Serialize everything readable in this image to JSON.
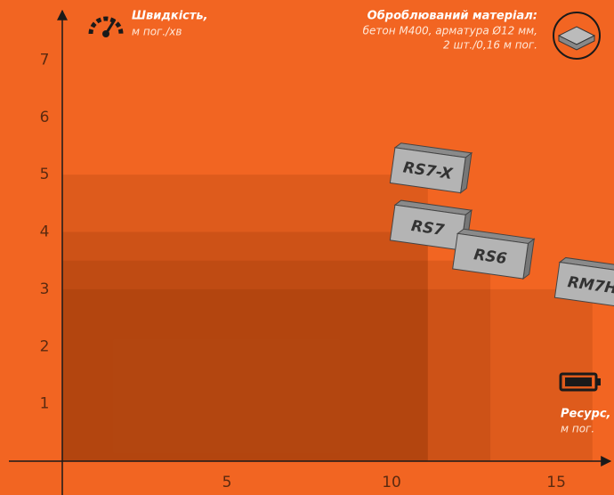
{
  "chart_data": {
    "type": "step-area",
    "y_label": "Швидкість,",
    "y_unit": "м пог./хв",
    "x_label": "Ресурс,",
    "x_unit": "м пог.",
    "material_title": "Оброблюваний матеріал:",
    "material_lines": [
      "бетон М400, арматура Ø12 мм,",
      "2 шт./0,16 м пог."
    ],
    "series": [
      {
        "name": "RS7-X",
        "speed": 5.0,
        "resource": 11.1
      },
      {
        "name": "RS7",
        "speed": 4.0,
        "resource": 11.1
      },
      {
        "name": "RS6",
        "speed": 3.5,
        "resource": 13.0
      },
      {
        "name": "RM7H",
        "speed": 3.0,
        "resource": 16.1
      }
    ],
    "color": "#7a2a00",
    "xlim": [
      0,
      16.7
    ],
    "ylim": [
      0,
      7.8
    ],
    "xticks": [
      5,
      10,
      15
    ],
    "yticks": [
      1,
      2,
      3,
      4,
      5,
      6,
      7
    ]
  }
}
